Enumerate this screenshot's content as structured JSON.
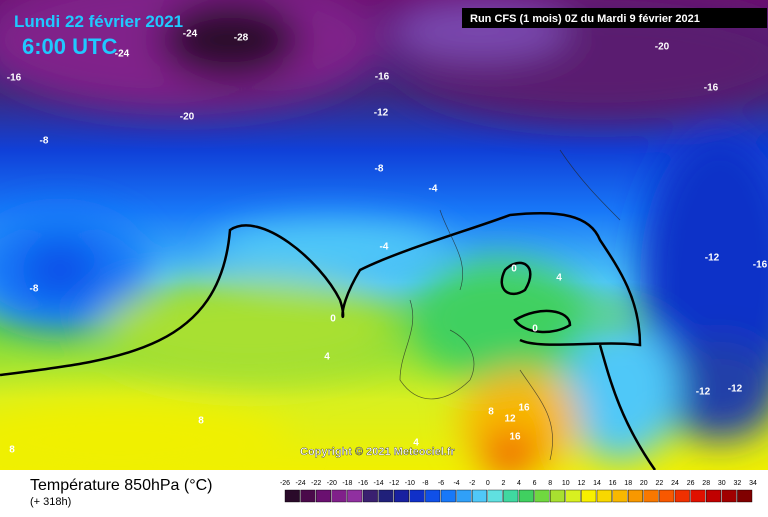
{
  "header": {
    "date": "Lundi 22 février 2021",
    "time": "6:00 UTC",
    "run": "Run CFS (1 mois) 0Z du Mardi 9 février 2021"
  },
  "copyright": "Copyright © 2021 Meteociel.fr",
  "contour_labels": [
    "-24",
    "-28",
    "-24",
    "-16",
    "-16",
    "-20",
    "-16",
    "-20",
    "-12",
    "-8",
    "-8",
    "-4",
    "-4",
    "-12",
    "-16",
    "-8",
    "0",
    "4",
    "0",
    "0",
    "4",
    "-12",
    "-12",
    "8",
    "8",
    "16",
    "12",
    "16",
    "4",
    "8"
  ],
  "legend": {
    "title": "Température 850hPa (°C)",
    "subtitle": "(+ 318h)",
    "scale": [
      -26,
      -24,
      -22,
      -20,
      -18,
      -16,
      -14,
      -12,
      -10,
      -8,
      -6,
      -4,
      -2,
      0,
      2,
      4,
      6,
      8,
      10,
      12,
      14,
      16,
      18,
      20,
      22,
      24,
      26,
      28,
      30,
      32,
      34
    ],
    "colors": [
      "#2a0a2a",
      "#4a0a4a",
      "#6a1070",
      "#80208a",
      "#9030a0",
      "#3a2070",
      "#20207a",
      "#1820a0",
      "#1030c8",
      "#1050e8",
      "#1878f8",
      "#30a0f8",
      "#50c8f8",
      "#60e0e0",
      "#40d8a0",
      "#40d060",
      "#70d840",
      "#a8e030",
      "#d8f020",
      "#f8f000",
      "#f8d800",
      "#f8b800",
      "#f89800",
      "#f87800",
      "#f85800",
      "#f03000",
      "#e01000",
      "#c00000",
      "#a00000",
      "#800000",
      "#600000"
    ]
  }
}
